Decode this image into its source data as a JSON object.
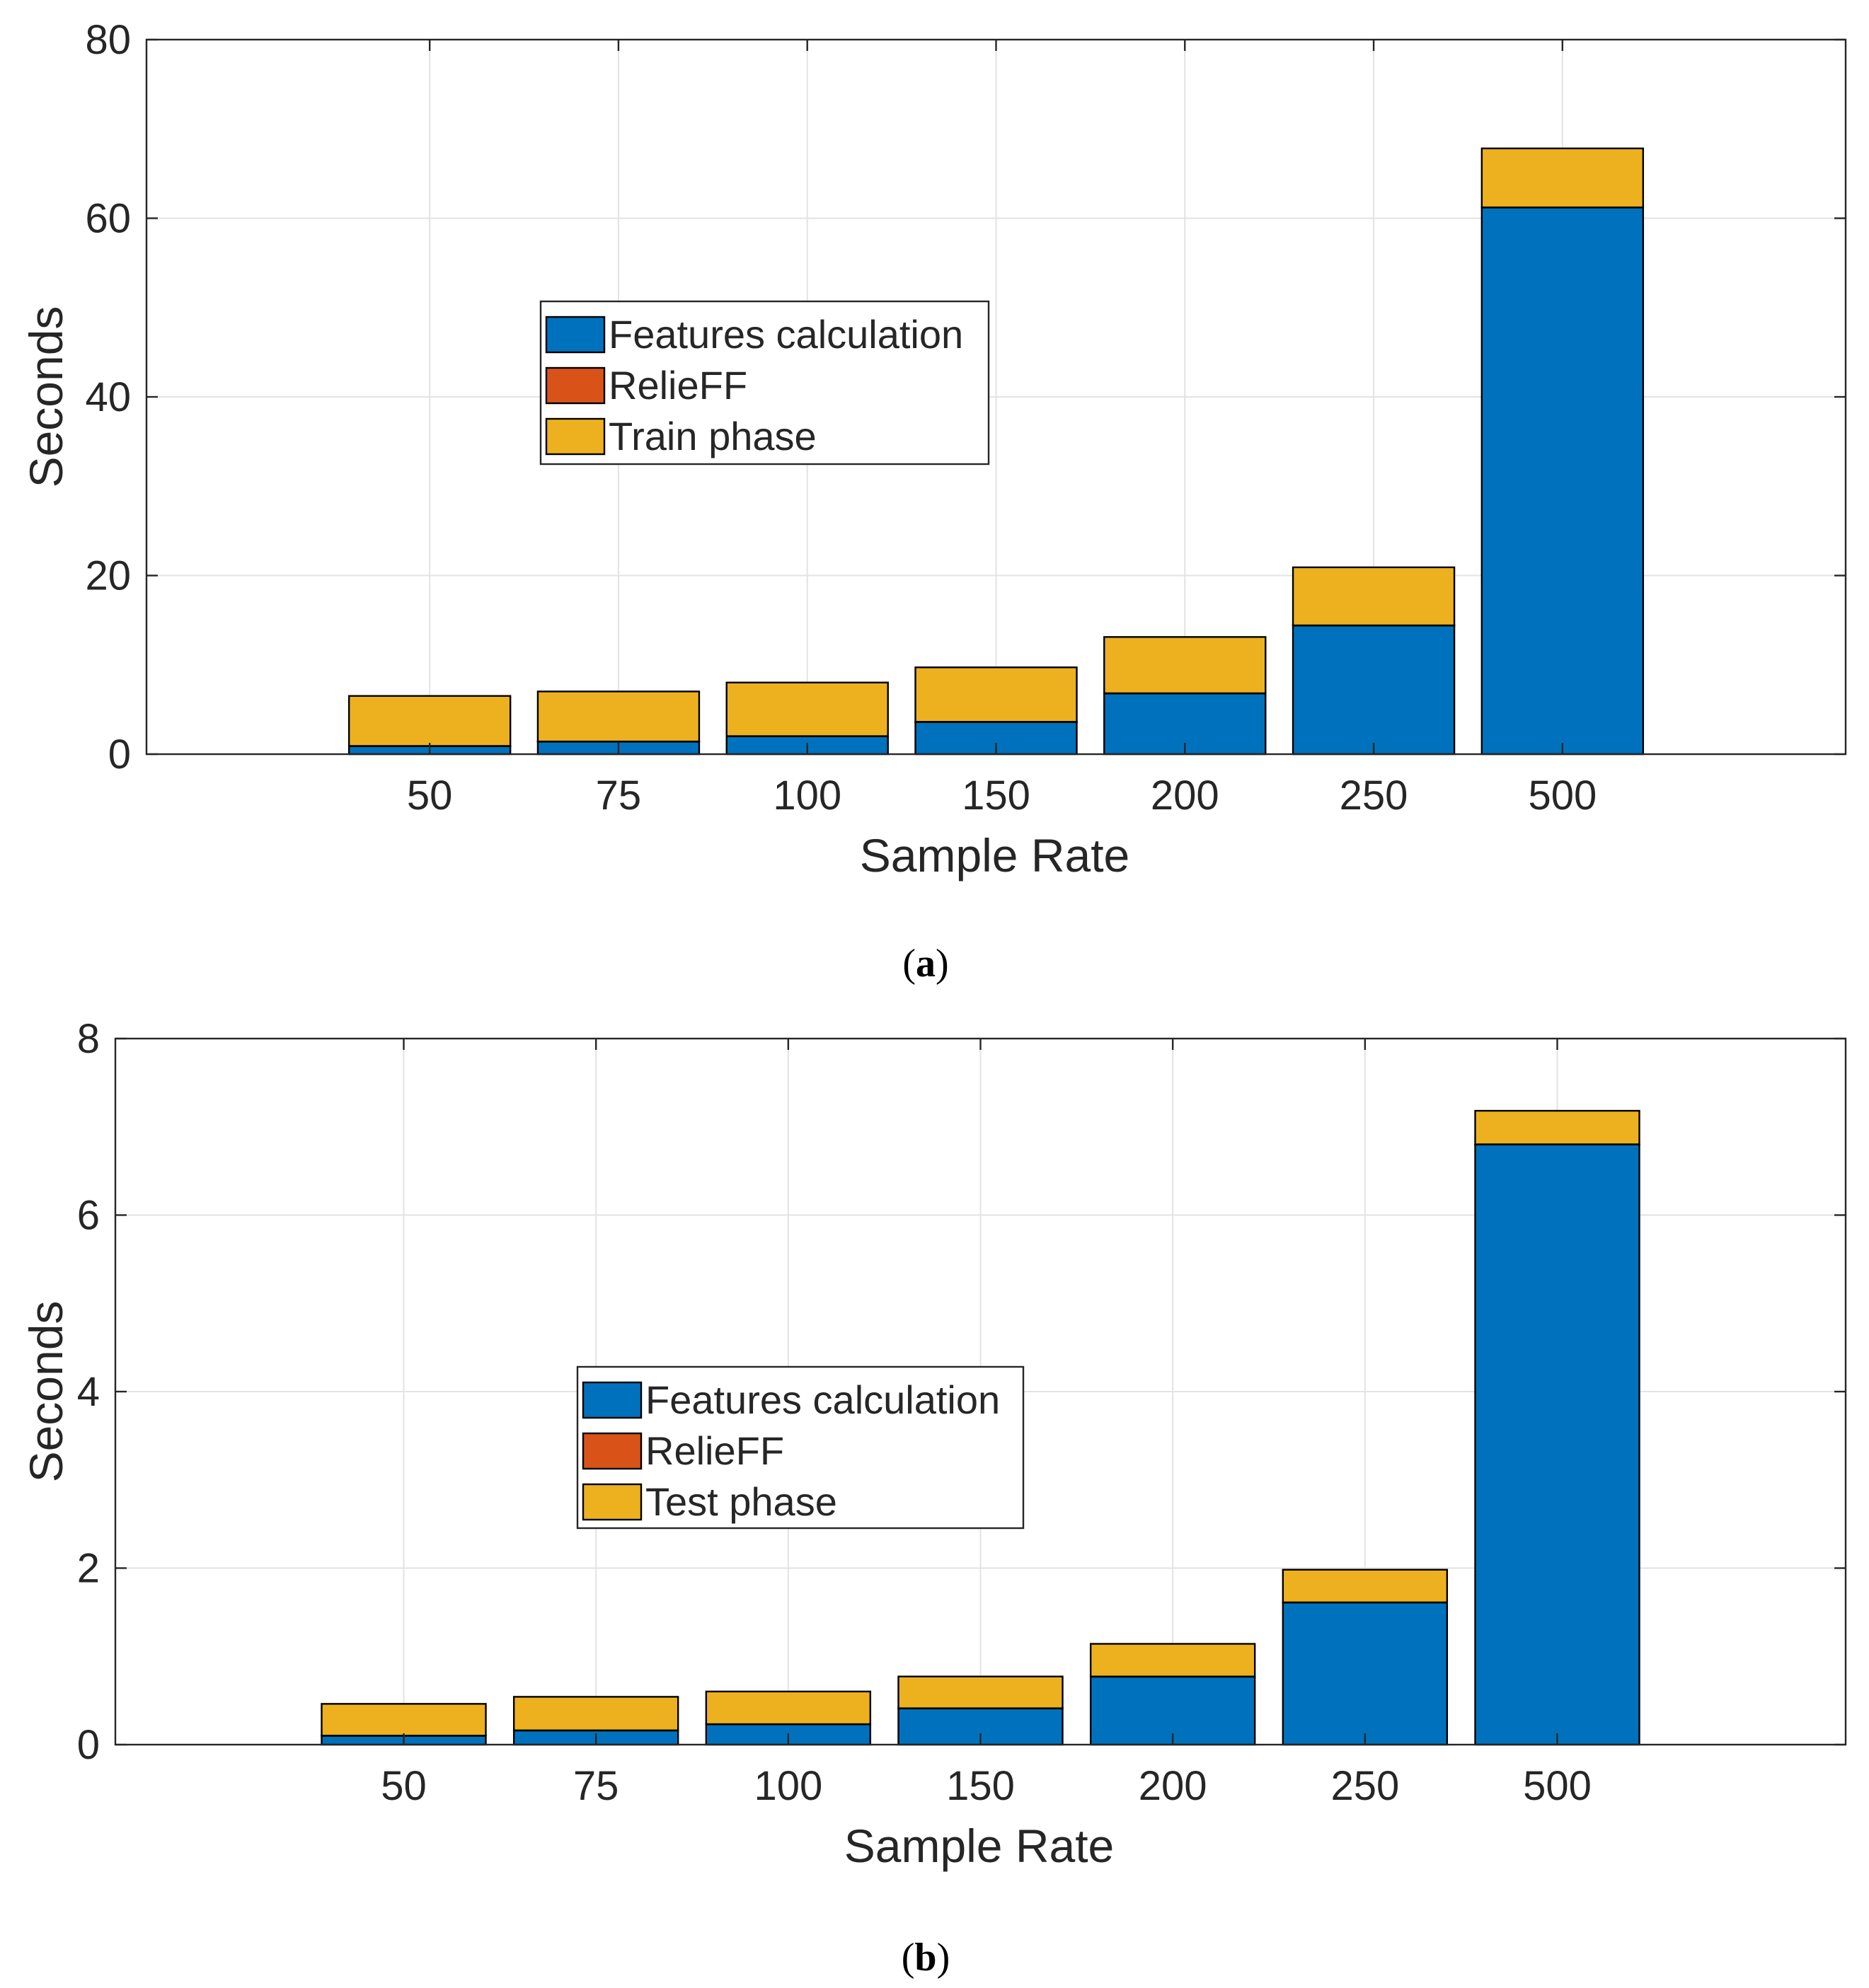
{
  "chart_data": [
    {
      "type": "bar",
      "stacked": true,
      "panel_label": "a",
      "title": "",
      "categories": [
        "50",
        "75",
        "100",
        "150",
        "200",
        "250",
        "500"
      ],
      "xlabel": "Sample Rate",
      "ylabel": "Seconds",
      "ylim": [
        0,
        80
      ],
      "yticks": [
        0,
        20,
        40,
        60,
        80
      ],
      "yticks_text": [
        "0",
        "20",
        "40",
        "60",
        "80"
      ],
      "grid": true,
      "legend_position": "center-left",
      "series": [
        {
          "name": "Features calculation",
          "color": "#0072BD",
          "values": [
            0.9,
            1.4,
            2.0,
            3.6,
            6.8,
            14.4,
            61.2
          ]
        },
        {
          "name": "RelieFF",
          "color": "#D95319",
          "values": [
            0.02,
            0.02,
            0.02,
            0.02,
            0.02,
            0.02,
            0.02
          ]
        },
        {
          "name": "Train phase",
          "color": "#EDB120",
          "values": [
            5.6,
            5.6,
            6.0,
            6.1,
            6.3,
            6.5,
            6.6
          ]
        }
      ]
    },
    {
      "type": "bar",
      "stacked": true,
      "panel_label": "b",
      "title": "",
      "categories": [
        "50",
        "75",
        "100",
        "150",
        "200",
        "250",
        "500"
      ],
      "xlabel": "Sample Rate",
      "ylabel": "Seconds",
      "ylim": [
        0,
        8
      ],
      "yticks": [
        0,
        2,
        4,
        6,
        8
      ],
      "yticks_text": [
        "0",
        "2",
        "4",
        "6",
        "8"
      ],
      "grid": true,
      "legend_position": "center-left",
      "series": [
        {
          "name": "Features calculation",
          "color": "#0072BD",
          "values": [
            0.1,
            0.16,
            0.23,
            0.41,
            0.77,
            1.61,
            6.8
          ]
        },
        {
          "name": "RelieFF",
          "color": "#D95319",
          "values": [
            0.002,
            0.002,
            0.002,
            0.002,
            0.002,
            0.002,
            0.002
          ]
        },
        {
          "name": "Test phase",
          "color": "#EDB120",
          "values": [
            0.36,
            0.38,
            0.37,
            0.36,
            0.37,
            0.37,
            0.38
          ]
        }
      ]
    }
  ]
}
